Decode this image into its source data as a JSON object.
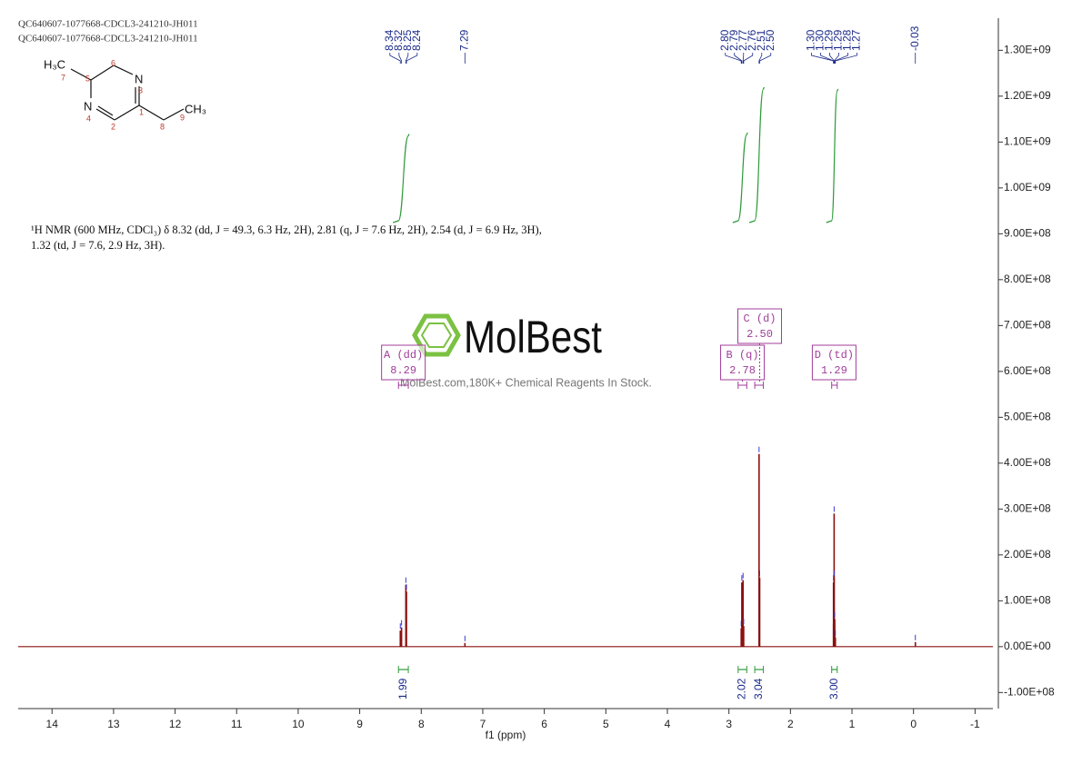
{
  "chart_data": {
    "type": "nmr",
    "header_lines": [
      "QC640607-1077668-CDCL3-241210-JH011",
      "QC640607-1077668-CDCL3-241210-JH011"
    ],
    "description": "¹H NMR (600 MHz, CDCl₃) δ 8.32 (dd, J = 49.3, 6.3 Hz, 2H), 2.81 (q, J = 7.6 Hz, 2H), 2.54 (d, J = 6.9 Hz, 3H), 1.32 (td, J = 7.6, 2.9 Hz, 3H).",
    "xlabel": "f1 (ppm)",
    "xlim": [
      14.55,
      -1.29
    ],
    "xticks": [
      14,
      13,
      12,
      11,
      10,
      9,
      8,
      7,
      6,
      5,
      4,
      3,
      2,
      1,
      0,
      -1
    ],
    "ylim": [
      -135000000,
      1370000000
    ],
    "yticks": [
      {
        "value": -100000000,
        "label": "-1.00E+08"
      },
      {
        "value": 0,
        "label": "0.00E+00"
      },
      {
        "value": 100000000,
        "label": "1.00E+08"
      },
      {
        "value": 200000000,
        "label": "2.00E+08"
      },
      {
        "value": 300000000,
        "label": "3.00E+08"
      },
      {
        "value": 400000000,
        "label": "4.00E+08"
      },
      {
        "value": 500000000,
        "label": "5.00E+08"
      },
      {
        "value": 600000000,
        "label": "6.00E+08"
      },
      {
        "value": 700000000,
        "label": "7.00E+08"
      },
      {
        "value": 800000000,
        "label": "8.00E+08"
      },
      {
        "value": 900000000,
        "label": "9.00E+08"
      },
      {
        "value": 1000000000,
        "label": "1.00E+09"
      },
      {
        "value": 1100000000,
        "label": "1.10E+09"
      },
      {
        "value": 1200000000,
        "label": "1.20E+09"
      },
      {
        "value": 1300000000,
        "label": "1.30E+09"
      }
    ],
    "color": "#8b1010",
    "peaks": {
      "x": [
        8.34,
        8.32,
        8.25,
        8.24,
        7.29,
        {
          "value": 2.8,
          "label": "2.80"
        },
        2.79,
        2.77,
        2.76,
        2.51,
        {
          "value": 2.5,
          "label": "2.50"
        },
        {
          "value": 1.3,
          "label": "1.30"
        },
        {
          "value": 1.3,
          "label": "1.30"
        },
        1.29,
        1.29,
        1.28,
        1.27,
        -0.03
      ],
      "values": [
        35000000,
        42000000,
        135000000,
        120000000,
        8000000,
        40000000,
        140000000,
        145000000,
        45000000,
        420000000,
        150000000,
        50000000,
        140000000,
        290000000,
        150000000,
        60000000,
        20000000,
        10000000
      ]
    },
    "integral_color": "#2e9a3a",
    "integrals": [
      {
        "from": 8.37,
        "to": 8.21,
        "value": 1.99
      },
      {
        "from": 2.85,
        "to": 2.71,
        "value": 2.02
      },
      {
        "from": 2.58,
        "to": 2.44,
        "value": 3.04
      },
      {
        "from": 1.33,
        "to": 1.24,
        "value": {
          "value": 3,
          "label": "3.00"
        }
      }
    ],
    "multiplets": [
      {
        "label": "A (dd)",
        "shift": 8.29,
        "from": 8.37,
        "to": 8.21
      },
      {
        "label": "B (q)",
        "shift": 2.78,
        "from": 2.85,
        "to": 2.71
      },
      {
        "label": "C (d)",
        "shift": {
          "value": 2.5,
          "label": "2.50"
        },
        "from": 2.58,
        "to": 2.44
      },
      {
        "label": "D (td)",
        "shift": 1.29,
        "from": 1.33,
        "to": 1.24
      }
    ],
    "molecule": {
      "atoms": [
        "H₃C",
        "N",
        "N",
        "CH₃"
      ],
      "numbers": [
        7,
        5,
        6,
        3,
        4,
        2,
        1,
        8,
        9
      ]
    },
    "watermark": {
      "brand": "MolBest",
      "tagline": "MolBest.com,180K+ Chemical Reagents In Stock."
    }
  }
}
